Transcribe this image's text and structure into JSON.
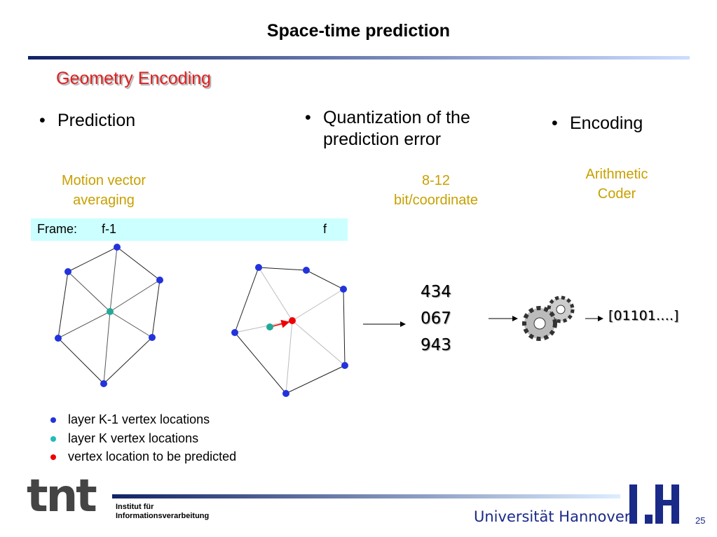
{
  "title": "Space-time prediction",
  "subtitle": "Geometry Encoding",
  "columns": [
    {
      "bullet": [
        "Prediction"
      ],
      "detail": [
        "Motion vector",
        "averaging"
      ]
    },
    {
      "bullet": [
        "Quantization of the",
        "prediction error"
      ],
      "detail": [
        "8-12",
        "bit/coordinate"
      ]
    },
    {
      "bullet": [
        "Encoding"
      ],
      "detail": [
        "Arithmetic",
        "Coder"
      ]
    }
  ],
  "frame": {
    "label": "Frame:",
    "previous": "f-1",
    "current": "f"
  },
  "quantized": [
    "434",
    "067",
    "943"
  ],
  "output": "[01101….]",
  "legend": [
    "layer K-1 vertex locations",
    "layer K vertex locations",
    "vertex location to be predicted"
  ],
  "footer": {
    "logo": "tnt",
    "institute": [
      "Institut für",
      "Informationsverarbeitung"
    ],
    "university": "Universität Hannover",
    "page": "25"
  }
}
